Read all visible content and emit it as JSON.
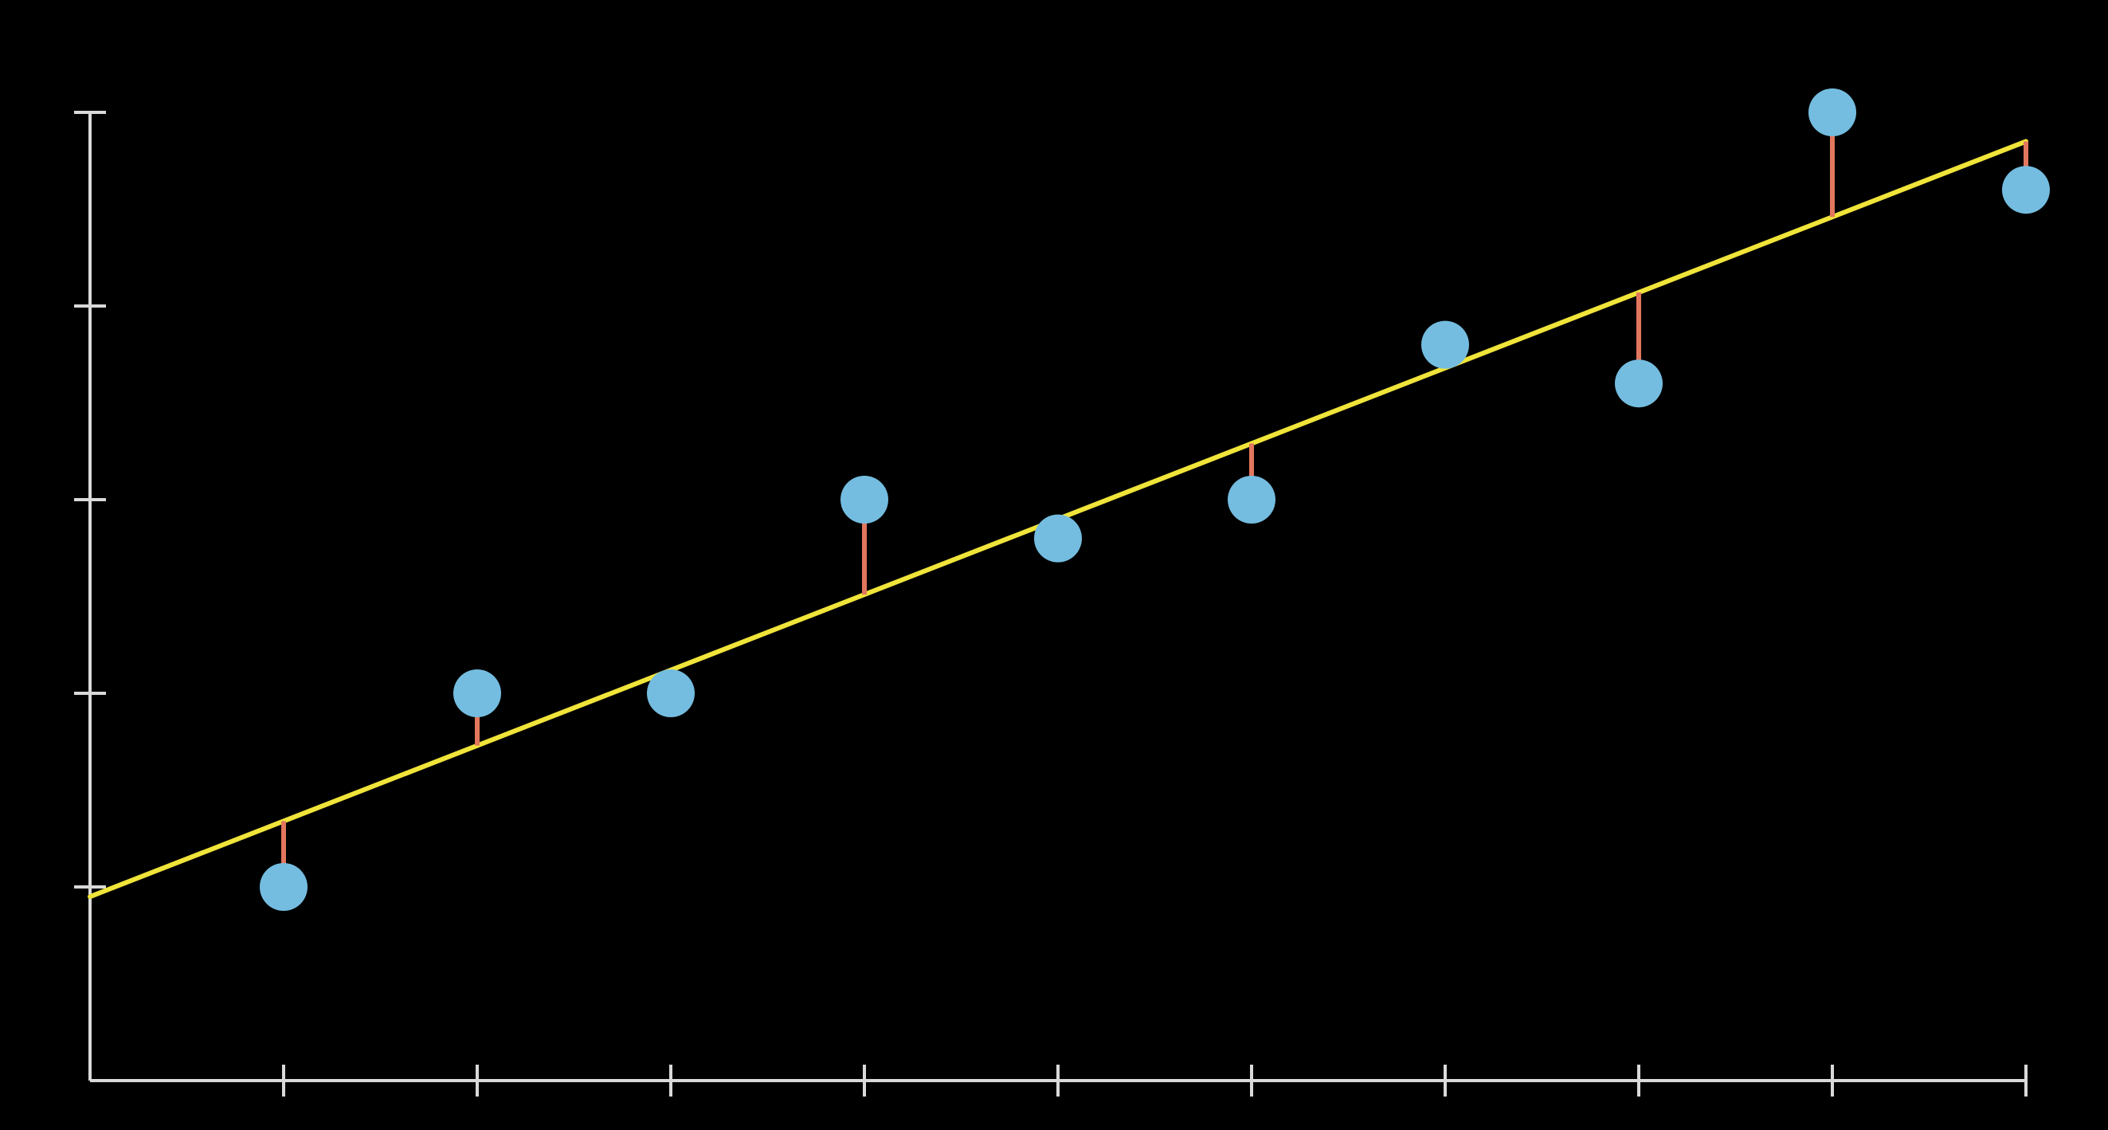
{
  "chart_data": {
    "type": "scatter",
    "title": "",
    "xlabel": "",
    "ylabel": "",
    "x": [
      1,
      2,
      3,
      4,
      5,
      6,
      7,
      8,
      9,
      10
    ],
    "y": [
      1,
      2,
      2,
      3,
      2.8,
      3,
      3.8,
      3.6,
      5,
      4.6
    ],
    "xlim": [
      0,
      10
    ],
    "ylim": [
      0,
      5
    ],
    "x_ticks": [
      1,
      2,
      3,
      4,
      5,
      6,
      7,
      8,
      9,
      10
    ],
    "y_ticks": [
      1,
      2,
      3,
      4,
      5
    ],
    "tick_labels_shown": false,
    "grid": false,
    "legend": "none",
    "regression_line": {
      "intercept": 0.95,
      "slope": 0.39
    },
    "residuals_shown": true,
    "colors": {
      "background": "#000000",
      "axes": "#d9d9d9",
      "points": "#74bde0",
      "regression_line": "#f0e43a",
      "residuals": "#e2775e"
    }
  }
}
